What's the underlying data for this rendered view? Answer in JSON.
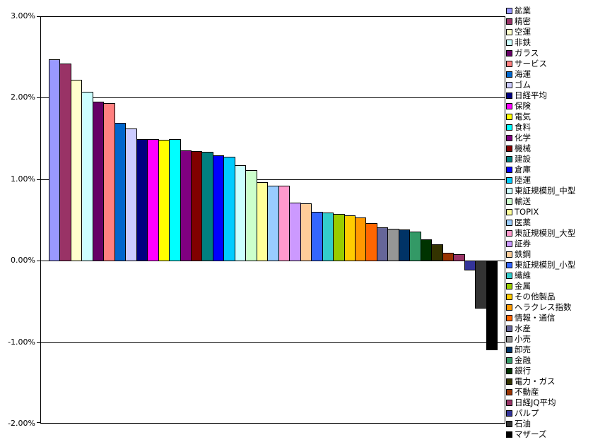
{
  "chart_data": {
    "type": "bar",
    "title": "",
    "xlabel": "",
    "ylabel": "",
    "ylim": [
      -2.0,
      3.0
    ],
    "grid": true,
    "legend_position": "right",
    "axis_color": "#000000",
    "background_color": "#FFFFFF",
    "yticks": [
      {
        "label": "3.00%",
        "value": 3
      },
      {
        "label": "2.00%",
        "value": 2
      },
      {
        "label": "1.00%",
        "value": 1
      },
      {
        "label": "0.00%",
        "value": 0
      },
      {
        "label": "-1.00%",
        "value": -1
      },
      {
        "label": "-2.00%",
        "value": -2
      }
    ],
    "series": [
      {
        "name": "鉱業",
        "value": 2.48,
        "color": "#9999FF"
      },
      {
        "name": "精密",
        "value": 2.43,
        "color": "#993366"
      },
      {
        "name": "空運",
        "value": 2.23,
        "color": "#FFFFCC"
      },
      {
        "name": "非鉄",
        "value": 2.08,
        "color": "#CCFFFF"
      },
      {
        "name": "ガラス",
        "value": 1.96,
        "color": "#660066"
      },
      {
        "name": "サービス",
        "value": 1.94,
        "color": "#FF8080"
      },
      {
        "name": "海運",
        "value": 1.7,
        "color": "#0066CC"
      },
      {
        "name": "ゴム",
        "value": 1.63,
        "color": "#CCCCFF"
      },
      {
        "name": "日経平均",
        "value": 1.5,
        "color": "#000080"
      },
      {
        "name": "保険",
        "value": 1.5,
        "color": "#FF00FF"
      },
      {
        "name": "電気",
        "value": 1.49,
        "color": "#FFFF00"
      },
      {
        "name": "食料",
        "value": 1.5,
        "color": "#00FFFF"
      },
      {
        "name": "化学",
        "value": 1.36,
        "color": "#800080"
      },
      {
        "name": "機械",
        "value": 1.35,
        "color": "#800000"
      },
      {
        "name": "建設",
        "value": 1.34,
        "color": "#008080"
      },
      {
        "name": "倉庫",
        "value": 1.3,
        "color": "#0000FF"
      },
      {
        "name": "陸運",
        "value": 1.28,
        "color": "#00CCFF"
      },
      {
        "name": "東証規模別_中型",
        "value": 1.18,
        "color": "#CCFFFF"
      },
      {
        "name": "輸送",
        "value": 1.12,
        "color": "#CCFFCC"
      },
      {
        "name": "TOPIX",
        "value": 0.97,
        "color": "#FFFF99"
      },
      {
        "name": "医薬",
        "value": 0.93,
        "color": "#99CCFF"
      },
      {
        "name": "東証規模別_大型",
        "value": 0.93,
        "color": "#FF99CC"
      },
      {
        "name": "証券",
        "value": 0.72,
        "color": "#CC99FF"
      },
      {
        "name": "鉄鋼",
        "value": 0.71,
        "color": "#FFCC99"
      },
      {
        "name": "東証規模別_小型",
        "value": 0.61,
        "color": "#3366FF"
      },
      {
        "name": "繊維",
        "value": 0.6,
        "color": "#33CCCC"
      },
      {
        "name": "金属",
        "value": 0.58,
        "color": "#99CC00"
      },
      {
        "name": "その他製品",
        "value": 0.56,
        "color": "#FFCC00"
      },
      {
        "name": "ヘラクレス指数",
        "value": 0.54,
        "color": "#FF9900"
      },
      {
        "name": "情報・通信",
        "value": 0.47,
        "color": "#FF6600"
      },
      {
        "name": "水産",
        "value": 0.42,
        "color": "#666699"
      },
      {
        "name": "小売",
        "value": 0.4,
        "color": "#969696"
      },
      {
        "name": "卸売",
        "value": 0.39,
        "color": "#003366"
      },
      {
        "name": "金融",
        "value": 0.36,
        "color": "#339966"
      },
      {
        "name": "銀行",
        "value": 0.27,
        "color": "#003300"
      },
      {
        "name": "電力・ガス",
        "value": 0.21,
        "color": "#333300"
      },
      {
        "name": "不動産",
        "value": 0.1,
        "color": "#993300"
      },
      {
        "name": "日経JQ平均",
        "value": 0.09,
        "color": "#993366"
      },
      {
        "name": "パルプ",
        "value": -0.12,
        "color": "#333399"
      },
      {
        "name": "石油",
        "value": -0.59,
        "color": "#333333"
      },
      {
        "name": "マザーズ",
        "value": -1.1,
        "color": "#000000"
      }
    ]
  }
}
